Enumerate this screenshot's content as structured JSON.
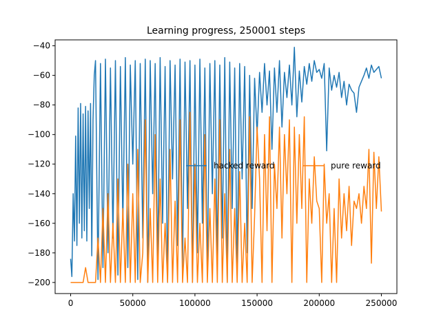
{
  "chart_data": {
    "type": "line",
    "title": "Learning progress, 250001 steps",
    "xlabel": "",
    "ylabel": "",
    "xlim": [
      -12500,
      262500
    ],
    "ylim": [
      -207.5,
      -36
    ],
    "xticks": [
      0,
      50000,
      100000,
      150000,
      200000,
      250000
    ],
    "yticks": [
      -40,
      -60,
      -80,
      -100,
      -120,
      -140,
      -160,
      -180,
      -200
    ],
    "grid": false,
    "legend": {
      "placement": "center-right",
      "columns": 2
    },
    "series": [
      {
        "name": "hacked reward",
        "color": "#1f77b4",
        "x": [
          0,
          1000,
          2000,
          3000,
          4000,
          5000,
          6000,
          7000,
          8000,
          9000,
          10000,
          11000,
          12000,
          13000,
          14000,
          15000,
          16000,
          17000,
          18000,
          19000,
          20000,
          22000,
          24000,
          26000,
          28000,
          30000,
          32000,
          34000,
          36000,
          38000,
          40000,
          42000,
          44000,
          46000,
          48000,
          50000,
          52000,
          54000,
          56000,
          58000,
          60000,
          62000,
          64000,
          66000,
          68000,
          70000,
          72000,
          74000,
          76000,
          78000,
          80000,
          82000,
          84000,
          86000,
          88000,
          90000,
          92000,
          94000,
          96000,
          98000,
          100000,
          102000,
          104000,
          106000,
          108000,
          110000,
          112000,
          114000,
          116000,
          118000,
          120000,
          122000,
          124000,
          126000,
          128000,
          130000,
          132000,
          134000,
          136000,
          138000,
          140000,
          142000,
          144000,
          146000,
          148000,
          150000,
          152000,
          154000,
          156000,
          158000,
          160000,
          162000,
          164000,
          166000,
          168000,
          170000,
          172000,
          174000,
          176000,
          178000,
          180000,
          182000,
          184000,
          186000,
          188000,
          190000,
          192000,
          194000,
          196000,
          198000,
          200000,
          202000,
          204000,
          206000,
          208000,
          210000,
          212000,
          214000,
          216000,
          218000,
          220000,
          222000,
          224000,
          226000,
          228000,
          230000,
          232000,
          234000,
          236000,
          238000,
          240000,
          242000,
          244000,
          246000,
          248000,
          250000
        ],
        "y": [
          -184,
          -196,
          -140,
          -172,
          -101,
          -175,
          -82,
          -160,
          -79,
          -170,
          -86,
          -165,
          -81,
          -172,
          -84,
          -150,
          -79,
          -182,
          -90,
          -60,
          -50,
          -198,
          -52,
          -190,
          -49,
          -180,
          -55,
          -170,
          -50,
          -195,
          -54,
          -160,
          -48,
          -190,
          -53,
          -120,
          -50,
          -198,
          -52,
          -170,
          -49,
          -200,
          -50,
          -140,
          -52,
          -190,
          -48,
          -160,
          -54,
          -200,
          -50,
          -130,
          -53,
          -175,
          -49,
          -190,
          -51,
          -150,
          -50,
          -200,
          -53,
          -180,
          -49,
          -160,
          -55,
          -195,
          -52,
          -140,
          -50,
          -185,
          -53,
          -170,
          -48,
          -200,
          -51,
          -150,
          -55,
          -190,
          -52,
          -130,
          -54,
          -180,
          -60,
          -150,
          -62,
          -100,
          -58,
          -85,
          -52,
          -80,
          -57,
          -110,
          -55,
          -85,
          -50,
          -95,
          -58,
          -75,
          -53,
          -80,
          -41,
          -88,
          -57,
          -78,
          -54,
          -66,
          -52,
          -64,
          -50,
          -58,
          -56,
          -62,
          -52,
          -111,
          -55,
          -70,
          -60,
          -68,
          -58,
          -75,
          -64,
          -80,
          -66,
          -70,
          -72,
          -85,
          -68,
          -64,
          -60,
          -55,
          -62,
          -53,
          -58,
          -56,
          -54,
          -62
        ]
      },
      {
        "name": "pure reward",
        "color": "#ff7f0e",
        "x": [
          0,
          2000,
          4000,
          6000,
          8000,
          10000,
          12000,
          14000,
          16000,
          18000,
          20000,
          22000,
          24000,
          26000,
          28000,
          30000,
          32000,
          34000,
          36000,
          38000,
          40000,
          42000,
          44000,
          46000,
          48000,
          50000,
          52000,
          54000,
          56000,
          58000,
          60000,
          62000,
          64000,
          66000,
          68000,
          70000,
          72000,
          74000,
          76000,
          78000,
          80000,
          82000,
          84000,
          86000,
          88000,
          90000,
          92000,
          94000,
          96000,
          98000,
          100000,
          102000,
          104000,
          106000,
          108000,
          110000,
          112000,
          114000,
          116000,
          118000,
          120000,
          122000,
          124000,
          126000,
          128000,
          130000,
          132000,
          134000,
          136000,
          138000,
          140000,
          142000,
          144000,
          146000,
          148000,
          150000,
          152000,
          154000,
          156000,
          158000,
          160000,
          162000,
          164000,
          166000,
          168000,
          170000,
          172000,
          174000,
          176000,
          178000,
          180000,
          182000,
          184000,
          186000,
          188000,
          190000,
          192000,
          194000,
          196000,
          198000,
          200000,
          202000,
          204000,
          206000,
          208000,
          210000,
          212000,
          214000,
          216000,
          218000,
          220000,
          222000,
          224000,
          226000,
          228000,
          230000,
          232000,
          234000,
          236000,
          238000,
          240000,
          242000,
          244000,
          246000,
          248000,
          250000
        ],
        "y": [
          -200,
          -200,
          -200,
          -200,
          -200,
          -200,
          -190,
          -200,
          -200,
          -200,
          -200,
          -170,
          -200,
          -150,
          -200,
          -140,
          -200,
          -160,
          -200,
          -130,
          -200,
          -150,
          -200,
          -120,
          -200,
          -140,
          -200,
          -110,
          -200,
          -180,
          -90,
          -200,
          -150,
          -200,
          -100,
          -200,
          -130,
          -200,
          -160,
          -200,
          -110,
          -200,
          -145,
          -200,
          -90,
          -200,
          -170,
          -200,
          -85,
          -200,
          -120,
          -200,
          -160,
          -200,
          -100,
          -200,
          -150,
          -200,
          -130,
          -200,
          -90,
          -200,
          -140,
          -200,
          -110,
          -200,
          -150,
          -200,
          -125,
          -200,
          -160,
          -200,
          -88,
          -200,
          -155,
          -95,
          -130,
          -200,
          -100,
          -165,
          -88,
          -200,
          -120,
          -150,
          -95,
          -170,
          -100,
          -140,
          -90,
          -200,
          -95,
          -160,
          -100,
          -150,
          -88,
          -200,
          -130,
          -160,
          -115,
          -145,
          -150,
          -200,
          -120,
          -160,
          -140,
          -200,
          -150,
          -200,
          -130,
          -170,
          -140,
          -165,
          -135,
          -175,
          -145,
          -150,
          -140,
          -160,
          -135,
          -150,
          -110,
          -187,
          -112,
          -150,
          -115,
          -152
        ]
      }
    ]
  }
}
